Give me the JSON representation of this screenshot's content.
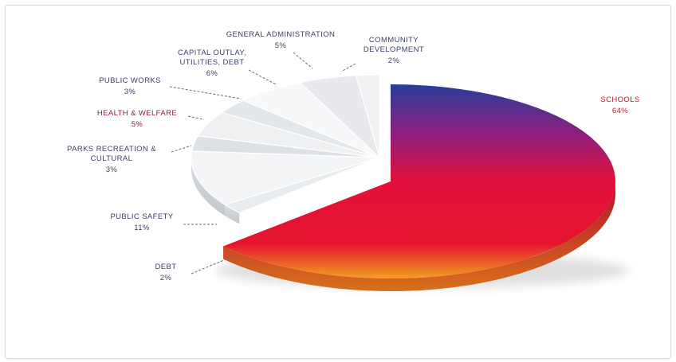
{
  "chart_data": {
    "type": "pie",
    "title": "",
    "slices": [
      {
        "label": "SCHOOLS",
        "value": 64,
        "display": "64%",
        "label_color": "#c0182f"
      },
      {
        "label": "DEBT",
        "value": 2,
        "display": "2%",
        "label_color": "#3b3f66"
      },
      {
        "label": "PUBLIC SAFETY",
        "value": 11,
        "display": "11%",
        "label_color": "#3b3f66"
      },
      {
        "label": "PARKS RECREATION & CULTURAL",
        "value": 3,
        "display": "3%",
        "label_color": "#3b3f66"
      },
      {
        "label": "HEALTH & WELFARE",
        "value": 5,
        "display": "5%",
        "label_color": "#8a2233"
      },
      {
        "label": "PUBLIC WORKS",
        "value": 3,
        "display": "3%",
        "label_color": "#3b3f66"
      },
      {
        "label": "CAPITAL OUTLAY, UTILITIES, DEBT",
        "value": 6,
        "display": "6%",
        "label_color": "#3b3f66"
      },
      {
        "label": "GENERAL ADMINISTRATION",
        "value": 5,
        "display": "5%",
        "label_color": "#3b3f66"
      },
      {
        "label": "COMMUNITY DEVELOPMENT",
        "value": 2,
        "display": "2%",
        "label_color": "#3b3f66"
      }
    ],
    "colors": {
      "schools_top": "#253f9a",
      "schools_mid": "#8c1f80",
      "schools_main": "#e3103a",
      "schools_bottom": "#f0a020",
      "others": "#eef0f3"
    },
    "legend": "none"
  }
}
